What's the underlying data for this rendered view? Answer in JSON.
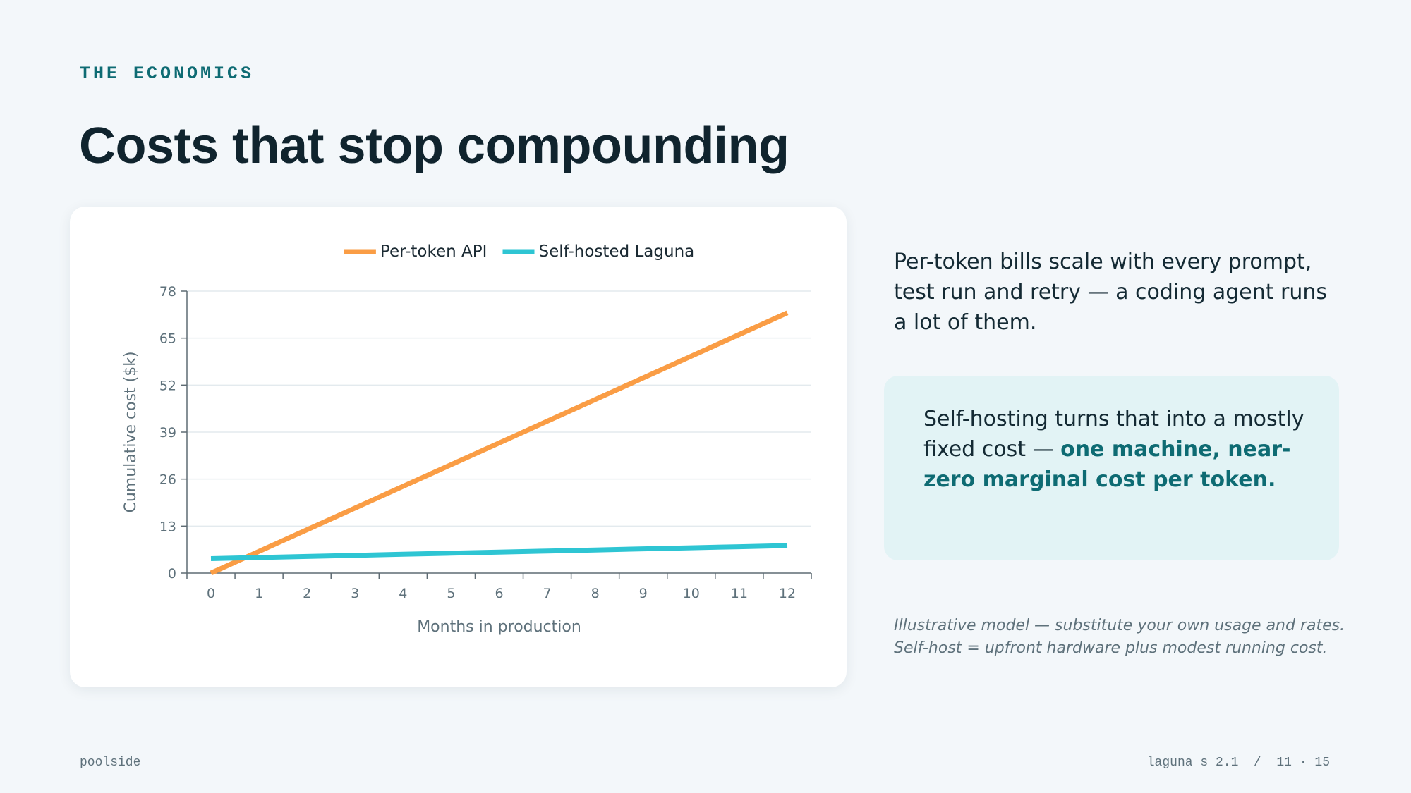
{
  "slide": {
    "eyebrow": "THE ECONOMICS",
    "title": "Costs that stop compounding"
  },
  "chart_data": {
    "type": "line",
    "x": [
      0,
      1,
      2,
      3,
      4,
      5,
      6,
      7,
      8,
      9,
      10,
      11,
      12
    ],
    "series": [
      {
        "name": "Per-token API",
        "color": "#fa9d45",
        "values": [
          0,
          6,
          12,
          18,
          24,
          30,
          36,
          42,
          48,
          54,
          60,
          66,
          72
        ]
      },
      {
        "name": "Self-hosted Laguna",
        "color": "#2ec5d3",
        "values": [
          4,
          4.3,
          4.6,
          4.9,
          5.2,
          5.5,
          5.8,
          6.1,
          6.4,
          6.7,
          7.0,
          7.3,
          7.6
        ]
      }
    ],
    "xlabel": "Months in production",
    "ylabel": "Cumulative cost ($k)",
    "xticks": [
      "0",
      "1",
      "2",
      "3",
      "4",
      "5",
      "6",
      "7",
      "8",
      "9",
      "10",
      "11",
      "12"
    ],
    "yticks": [
      "0",
      "13",
      "26",
      "39",
      "52",
      "65",
      "78"
    ],
    "xlim": [
      -0.5,
      12.5
    ],
    "ylim": [
      0,
      78
    ],
    "grid": true,
    "legend": "top-center"
  },
  "sidebar": {
    "intro": "Per-token bills scale with every prompt, test run and retry — a coding agent runs a lot of them.",
    "callout_plain": "Self-hosting turns that into a mostly fixed cost — ",
    "callout_emphasis": "one machine, near-zero marginal cost per token.",
    "note_line1": "Illustrative model — substitute your own usage and rates.",
    "note_line2": "Self-host = upfront hardware plus modest running cost."
  },
  "footer": {
    "brand": "poolside",
    "deck_info": "laguna s 2.1  /  11 · 15"
  },
  "colors": {
    "accent": "#0e6b73",
    "title": "#10242e",
    "background": "#f3f7fa",
    "callout_bg": "#e2f3f5"
  }
}
